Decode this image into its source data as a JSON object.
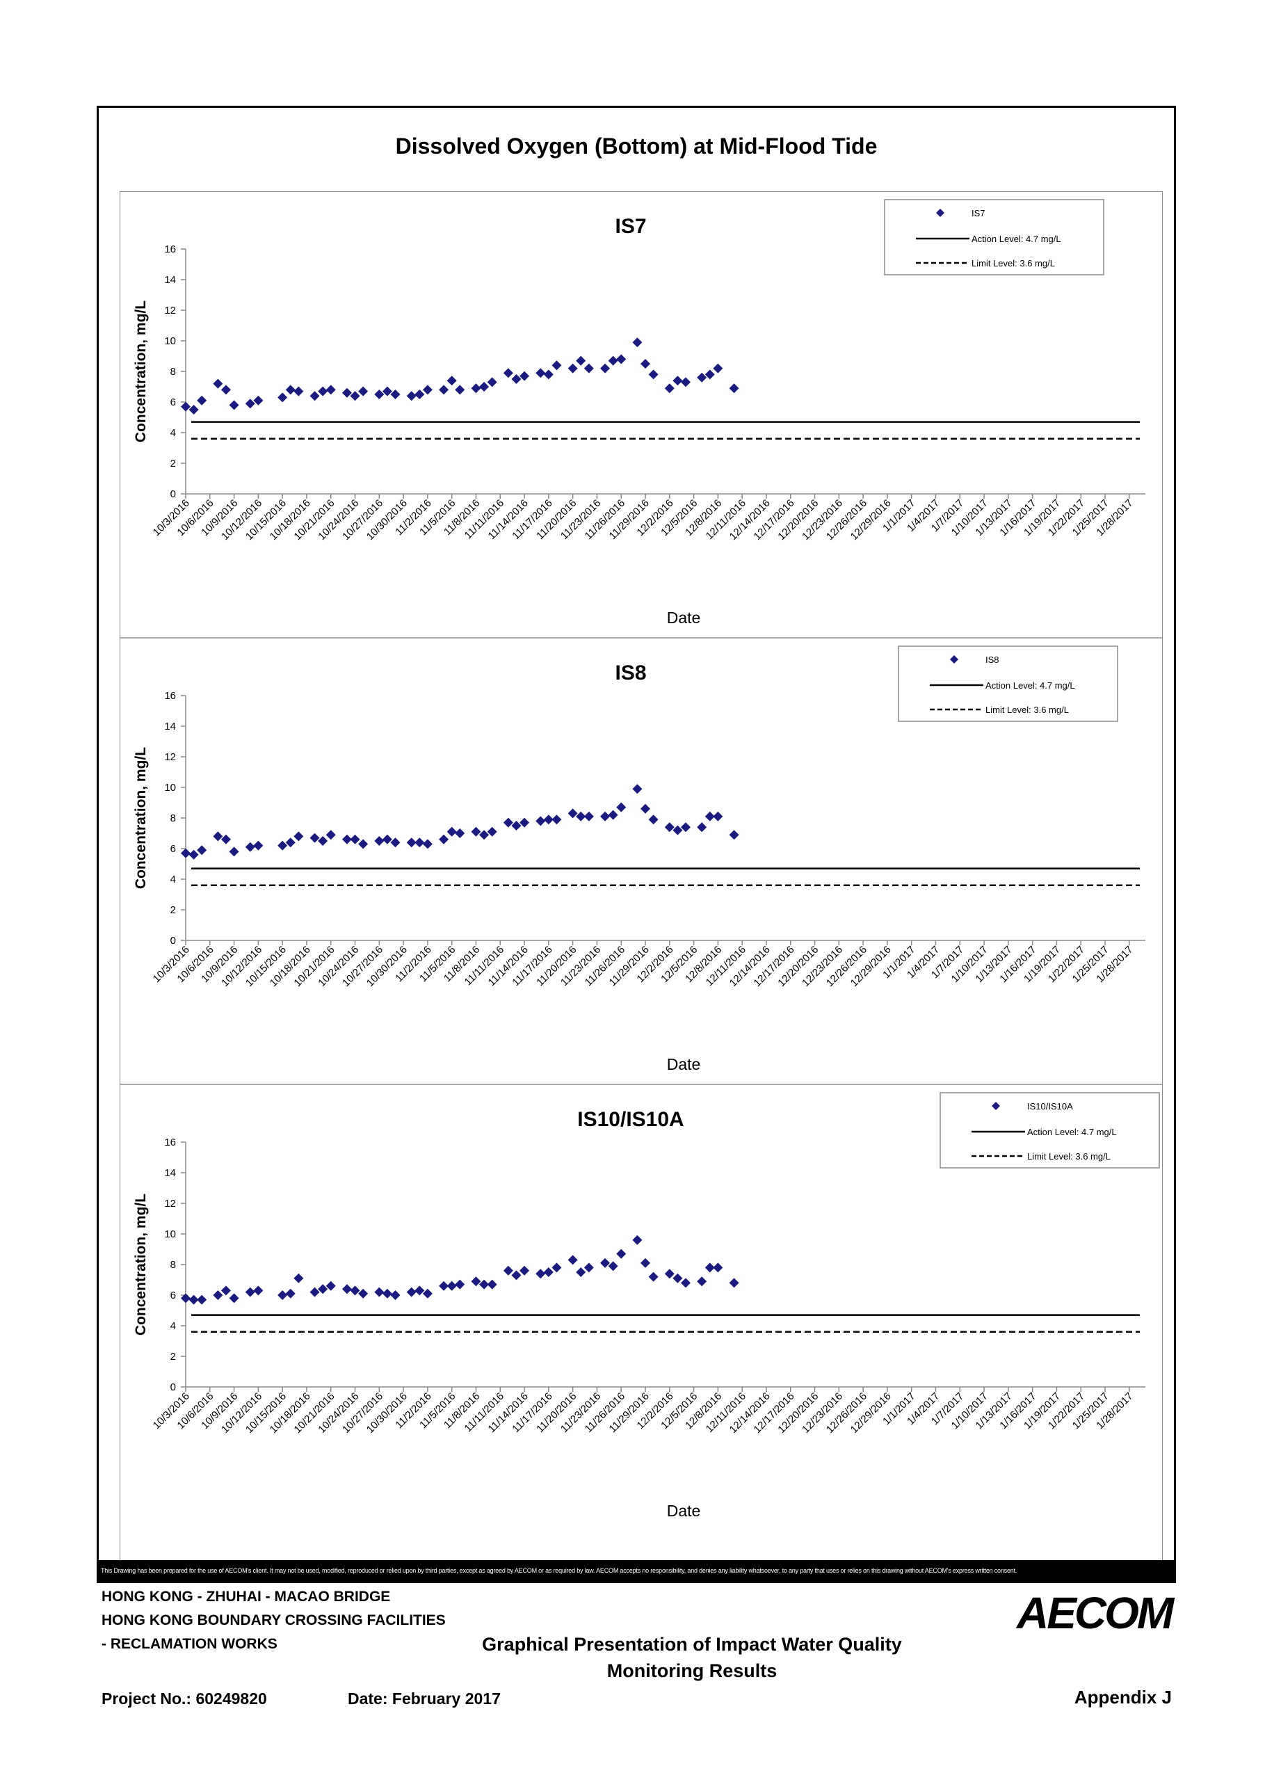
{
  "page": {
    "main_title": "Dissolved Oxygen (Bottom) at Mid-Flood Tide",
    "disclaimer": "This Drawing has been prepared for the use of AECOM's client. It may not be used, modified, reproduced or relied upon by third parties, except as agreed by AECOM or as required by law. AECOM accepts no responsibility, and denies any liability whatsoever, to any party that uses or relies on this drawing without AECOM's express written consent.",
    "project_lines": [
      "HONG KONG - ZHUHAI - MACAO BRIDGE",
      "HONG KONG BOUNDARY CROSSING FACILITIES",
      "- RECLAMATION WORKS"
    ],
    "report_title_line1": "Graphical Presentation of Impact Water Quality",
    "report_title_line2": "Monitoring Results",
    "logo": "AECOM",
    "project_no": "Project No.: 60249820",
    "date": "Date: February 2017",
    "appendix": "Appendix J"
  },
  "colors": {
    "marker": "#1a1a80",
    "axis": "#888888",
    "line": "#000000"
  },
  "chart_data": [
    {
      "type": "scatter",
      "title": "IS7",
      "xlabel": "Date",
      "ylabel": "Concentration, mg/L",
      "ylim": [
        0,
        16
      ],
      "yticks": [
        0,
        2,
        4,
        6,
        8,
        10,
        12,
        14,
        16
      ],
      "xlim": [
        "10/3/2016",
        "1/30/2017"
      ],
      "xticks": [
        "10/3/2016",
        "10/6/2016",
        "10/9/2016",
        "10/12/2016",
        "10/15/2016",
        "10/18/2016",
        "10/21/2016",
        "10/24/2016",
        "10/27/2016",
        "10/30/2016",
        "11/2/2016",
        "11/5/2016",
        "11/8/2016",
        "11/11/2016",
        "11/14/2016",
        "11/17/2016",
        "11/20/2016",
        "11/23/2016",
        "11/26/2016",
        "11/29/2016",
        "12/2/2016",
        "12/5/2016",
        "12/8/2016",
        "12/11/2016",
        "12/14/2016",
        "12/17/2016",
        "12/20/2016",
        "12/23/2016",
        "12/26/2016",
        "12/29/2016",
        "1/1/2017",
        "1/4/2017",
        "1/7/2017",
        "1/10/2017",
        "1/13/2017",
        "1/16/2017",
        "1/19/2017",
        "1/22/2017",
        "1/25/2017",
        "1/28/2017"
      ],
      "legend": {
        "position": "top-right",
        "entries": [
          "IS7",
          "Action Level: 4.7 mg/L",
          "Limit Level: 3.6 mg/L"
        ]
      },
      "action_level": 4.7,
      "limit_level": 3.6,
      "series": [
        {
          "name": "IS7",
          "points": [
            [
              "10/3/2016",
              5.7
            ],
            [
              "10/4/2016",
              5.5
            ],
            [
              "10/5/2016",
              6.1
            ],
            [
              "10/7/2016",
              7.2
            ],
            [
              "10/8/2016",
              6.8
            ],
            [
              "10/9/2016",
              5.8
            ],
            [
              "10/11/2016",
              5.9
            ],
            [
              "10/12/2016",
              6.1
            ],
            [
              "10/15/2016",
              6.3
            ],
            [
              "10/16/2016",
              6.8
            ],
            [
              "10/17/2016",
              6.7
            ],
            [
              "10/19/2016",
              6.4
            ],
            [
              "10/20/2016",
              6.7
            ],
            [
              "10/21/2016",
              6.8
            ],
            [
              "10/23/2016",
              6.6
            ],
            [
              "10/24/2016",
              6.4
            ],
            [
              "10/25/2016",
              6.7
            ],
            [
              "10/27/2016",
              6.5
            ],
            [
              "10/28/2016",
              6.7
            ],
            [
              "10/29/2016",
              6.5
            ],
            [
              "10/31/2016",
              6.4
            ],
            [
              "11/1/2016",
              6.5
            ],
            [
              "11/2/2016",
              6.8
            ],
            [
              "11/4/2016",
              6.8
            ],
            [
              "11/5/2016",
              7.4
            ],
            [
              "11/6/2016",
              6.8
            ],
            [
              "11/8/2016",
              6.9
            ],
            [
              "11/9/2016",
              7.0
            ],
            [
              "11/10/2016",
              7.3
            ],
            [
              "11/12/2016",
              7.9
            ],
            [
              "11/13/2016",
              7.5
            ],
            [
              "11/14/2016",
              7.7
            ],
            [
              "11/16/2016",
              7.9
            ],
            [
              "11/17/2016",
              7.8
            ],
            [
              "11/18/2016",
              8.4
            ],
            [
              "11/20/2016",
              8.2
            ],
            [
              "11/21/2016",
              8.7
            ],
            [
              "11/22/2016",
              8.2
            ],
            [
              "11/24/2016",
              8.2
            ],
            [
              "11/25/2016",
              8.7
            ],
            [
              "11/26/2016",
              8.8
            ],
            [
              "11/28/2016",
              9.9
            ],
            [
              "11/29/2016",
              8.5
            ],
            [
              "11/30/2016",
              7.8
            ],
            [
              "12/2/2016",
              6.9
            ],
            [
              "12/3/2016",
              7.4
            ],
            [
              "12/4/2016",
              7.3
            ],
            [
              "12/6/2016",
              7.6
            ],
            [
              "12/7/2016",
              7.8
            ],
            [
              "12/8/2016",
              8.2
            ],
            [
              "12/10/2016",
              6.9
            ]
          ]
        }
      ]
    },
    {
      "type": "scatter",
      "title": "IS8",
      "xlabel": "Date",
      "ylabel": "Concentration, mg/L",
      "ylim": [
        0,
        16
      ],
      "yticks": [
        0,
        2,
        4,
        6,
        8,
        10,
        12,
        14,
        16
      ],
      "xlim": [
        "10/3/2016",
        "1/30/2017"
      ],
      "xticks": [
        "10/3/2016",
        "10/6/2016",
        "10/9/2016",
        "10/12/2016",
        "10/15/2016",
        "10/18/2016",
        "10/21/2016",
        "10/24/2016",
        "10/27/2016",
        "10/30/2016",
        "11/2/2016",
        "11/5/2016",
        "11/8/2016",
        "11/11/2016",
        "11/14/2016",
        "11/17/2016",
        "11/20/2016",
        "11/23/2016",
        "11/26/2016",
        "11/29/2016",
        "12/2/2016",
        "12/5/2016",
        "12/8/2016",
        "12/11/2016",
        "12/14/2016",
        "12/17/2016",
        "12/20/2016",
        "12/23/2016",
        "12/26/2016",
        "12/29/2016",
        "1/1/2017",
        "1/4/2017",
        "1/7/2017",
        "1/10/2017",
        "1/13/2017",
        "1/16/2017",
        "1/19/2017",
        "1/22/2017",
        "1/25/2017",
        "1/28/2017"
      ],
      "legend": {
        "position": "top-right",
        "entries": [
          "IS8",
          "Action Level: 4.7 mg/L",
          "Limit Level: 3.6 mg/L"
        ]
      },
      "action_level": 4.7,
      "limit_level": 3.6,
      "series": [
        {
          "name": "IS8",
          "points": [
            [
              "10/3/2016",
              5.7
            ],
            [
              "10/4/2016",
              5.6
            ],
            [
              "10/5/2016",
              5.9
            ],
            [
              "10/7/2016",
              6.8
            ],
            [
              "10/8/2016",
              6.6
            ],
            [
              "10/9/2016",
              5.8
            ],
            [
              "10/11/2016",
              6.1
            ],
            [
              "10/12/2016",
              6.2
            ],
            [
              "10/15/2016",
              6.2
            ],
            [
              "10/16/2016",
              6.4
            ],
            [
              "10/17/2016",
              6.8
            ],
            [
              "10/19/2016",
              6.7
            ],
            [
              "10/20/2016",
              6.5
            ],
            [
              "10/21/2016",
              6.9
            ],
            [
              "10/23/2016",
              6.6
            ],
            [
              "10/24/2016",
              6.6
            ],
            [
              "10/25/2016",
              6.3
            ],
            [
              "10/27/2016",
              6.5
            ],
            [
              "10/28/2016",
              6.6
            ],
            [
              "10/29/2016",
              6.4
            ],
            [
              "10/31/2016",
              6.4
            ],
            [
              "11/1/2016",
              6.4
            ],
            [
              "11/2/2016",
              6.3
            ],
            [
              "11/4/2016",
              6.6
            ],
            [
              "11/5/2016",
              7.1
            ],
            [
              "11/6/2016",
              7.0
            ],
            [
              "11/8/2016",
              7.1
            ],
            [
              "11/9/2016",
              6.9
            ],
            [
              "11/10/2016",
              7.1
            ],
            [
              "11/12/2016",
              7.7
            ],
            [
              "11/13/2016",
              7.5
            ],
            [
              "11/14/2016",
              7.7
            ],
            [
              "11/16/2016",
              7.8
            ],
            [
              "11/17/2016",
              7.9
            ],
            [
              "11/18/2016",
              7.9
            ],
            [
              "11/20/2016",
              8.3
            ],
            [
              "11/21/2016",
              8.1
            ],
            [
              "11/22/2016",
              8.1
            ],
            [
              "11/24/2016",
              8.1
            ],
            [
              "11/25/2016",
              8.2
            ],
            [
              "11/26/2016",
              8.7
            ],
            [
              "11/28/2016",
              9.9
            ],
            [
              "11/29/2016",
              8.6
            ],
            [
              "11/30/2016",
              7.9
            ],
            [
              "12/2/2016",
              7.4
            ],
            [
              "12/3/2016",
              7.2
            ],
            [
              "12/4/2016",
              7.4
            ],
            [
              "12/6/2016",
              7.4
            ],
            [
              "12/7/2016",
              8.1
            ],
            [
              "12/8/2016",
              8.1
            ],
            [
              "12/10/2016",
              6.9
            ]
          ]
        }
      ]
    },
    {
      "type": "scatter",
      "title": "IS10/IS10A",
      "xlabel": "Date",
      "ylabel": "Concentration, mg/L",
      "ylim": [
        0,
        16
      ],
      "yticks": [
        0,
        2,
        4,
        6,
        8,
        10,
        12,
        14,
        16
      ],
      "xlim": [
        "10/3/2016",
        "1/30/2017"
      ],
      "xticks": [
        "10/3/2016",
        "10/6/2016",
        "10/9/2016",
        "10/12/2016",
        "10/15/2016",
        "10/18/2016",
        "10/21/2016",
        "10/24/2016",
        "10/27/2016",
        "10/30/2016",
        "11/2/2016",
        "11/5/2016",
        "11/8/2016",
        "11/11/2016",
        "11/14/2016",
        "11/17/2016",
        "11/20/2016",
        "11/23/2016",
        "11/26/2016",
        "11/29/2016",
        "12/2/2016",
        "12/5/2016",
        "12/8/2016",
        "12/11/2016",
        "12/14/2016",
        "12/17/2016",
        "12/20/2016",
        "12/23/2016",
        "12/26/2016",
        "12/29/2016",
        "1/1/2017",
        "1/4/2017",
        "1/7/2017",
        "1/10/2017",
        "1/13/2017",
        "1/16/2017",
        "1/19/2017",
        "1/22/2017",
        "1/25/2017",
        "1/28/2017"
      ],
      "legend": {
        "position": "top-right",
        "entries": [
          "IS10/IS10A",
          "Action Level: 4.7 mg/L",
          "Limit Level: 3.6 mg/L"
        ]
      },
      "action_level": 4.7,
      "limit_level": 3.6,
      "series": [
        {
          "name": "IS10/IS10A",
          "points": [
            [
              "10/3/2016",
              5.8
            ],
            [
              "10/4/2016",
              5.7
            ],
            [
              "10/5/2016",
              5.7
            ],
            [
              "10/7/2016",
              6.0
            ],
            [
              "10/8/2016",
              6.3
            ],
            [
              "10/9/2016",
              5.8
            ],
            [
              "10/11/2016",
              6.2
            ],
            [
              "10/12/2016",
              6.3
            ],
            [
              "10/15/2016",
              6.0
            ],
            [
              "10/16/2016",
              6.1
            ],
            [
              "10/17/2016",
              7.1
            ],
            [
              "10/19/2016",
              6.2
            ],
            [
              "10/20/2016",
              6.4
            ],
            [
              "10/21/2016",
              6.6
            ],
            [
              "10/23/2016",
              6.4
            ],
            [
              "10/24/2016",
              6.3
            ],
            [
              "10/25/2016",
              6.1
            ],
            [
              "10/27/2016",
              6.2
            ],
            [
              "10/28/2016",
              6.1
            ],
            [
              "10/29/2016",
              6.0
            ],
            [
              "10/31/2016",
              6.2
            ],
            [
              "11/1/2016",
              6.3
            ],
            [
              "11/2/2016",
              6.1
            ],
            [
              "11/4/2016",
              6.6
            ],
            [
              "11/5/2016",
              6.6
            ],
            [
              "11/6/2016",
              6.7
            ],
            [
              "11/8/2016",
              6.9
            ],
            [
              "11/9/2016",
              6.7
            ],
            [
              "11/10/2016",
              6.7
            ],
            [
              "11/12/2016",
              7.6
            ],
            [
              "11/13/2016",
              7.3
            ],
            [
              "11/14/2016",
              7.6
            ],
            [
              "11/16/2016",
              7.4
            ],
            [
              "11/17/2016",
              7.5
            ],
            [
              "11/18/2016",
              7.8
            ],
            [
              "11/20/2016",
              8.3
            ],
            [
              "11/21/2016",
              7.5
            ],
            [
              "11/22/2016",
              7.8
            ],
            [
              "11/24/2016",
              8.1
            ],
            [
              "11/25/2016",
              7.9
            ],
            [
              "11/26/2016",
              8.7
            ],
            [
              "11/28/2016",
              9.6
            ],
            [
              "11/29/2016",
              8.1
            ],
            [
              "11/30/2016",
              7.2
            ],
            [
              "12/2/2016",
              7.4
            ],
            [
              "12/3/2016",
              7.1
            ],
            [
              "12/4/2016",
              6.8
            ],
            [
              "12/6/2016",
              6.9
            ],
            [
              "12/7/2016",
              7.8
            ],
            [
              "12/8/2016",
              7.8
            ],
            [
              "12/10/2016",
              6.8
            ]
          ]
        }
      ]
    }
  ]
}
